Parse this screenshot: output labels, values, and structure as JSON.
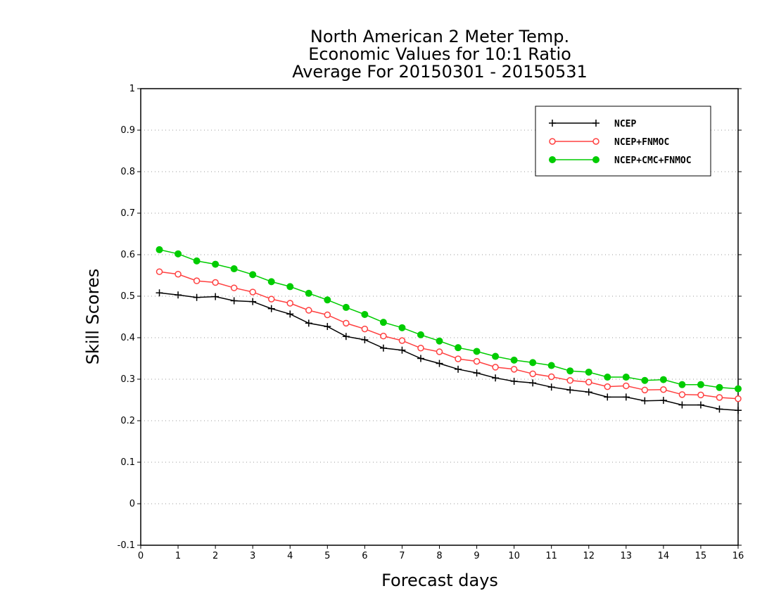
{
  "chart_data": {
    "type": "line",
    "title_lines": [
      "North American 2 Meter Temp.",
      "Economic Values for 10:1 Ratio",
      "Average For 20150301 - 20150531"
    ],
    "xlabel": "Forecast days",
    "ylabel": "Skill Scores",
    "xlim": [
      0,
      16
    ],
    "ylim": [
      -0.1,
      1
    ],
    "x_ticks": [
      0,
      1,
      2,
      3,
      4,
      5,
      6,
      7,
      8,
      9,
      10,
      11,
      12,
      13,
      14,
      15,
      16
    ],
    "y_ticks": [
      -0.1,
      0,
      0.1,
      0.2,
      0.3,
      0.4,
      0.5,
      0.6,
      0.7,
      0.8,
      0.9,
      1
    ],
    "y_tick_labels": [
      "-0.1",
      "0",
      "0.1",
      "0.2",
      "0.3",
      "0.4",
      "0.5",
      "0.6",
      "0.7",
      "0.8",
      "0.9",
      "1"
    ],
    "grid": "horizontal dotted",
    "legend_position": "top-right",
    "x": [
      0.5,
      1,
      1.5,
      2,
      2.5,
      3,
      3.5,
      4,
      4.5,
      5,
      5.5,
      6,
      6.5,
      7,
      7.5,
      8,
      8.5,
      9,
      9.5,
      10,
      10.5,
      11,
      11.5,
      12,
      12.5,
      13,
      13.5,
      14,
      14.5,
      15,
      15.5,
      16
    ],
    "series": [
      {
        "name": "NCEP",
        "color": "#000000",
        "marker": "plus",
        "values": [
          0.508,
          0.503,
          0.497,
          0.499,
          0.489,
          0.487,
          0.47,
          0.457,
          0.435,
          0.427,
          0.403,
          0.395,
          0.375,
          0.37,
          0.35,
          0.338,
          0.324,
          0.315,
          0.303,
          0.295,
          0.291,
          0.281,
          0.274,
          0.269,
          0.257,
          0.257,
          0.248,
          0.249,
          0.238,
          0.238,
          0.228,
          0.225
        ]
      },
      {
        "name": "NCEP+FNMOC",
        "color": "#ff4040",
        "marker": "open-circle",
        "values": [
          0.559,
          0.553,
          0.537,
          0.533,
          0.52,
          0.51,
          0.493,
          0.483,
          0.466,
          0.455,
          0.435,
          0.421,
          0.404,
          0.393,
          0.375,
          0.366,
          0.349,
          0.343,
          0.329,
          0.324,
          0.313,
          0.306,
          0.297,
          0.293,
          0.282,
          0.284,
          0.274,
          0.275,
          0.263,
          0.262,
          0.256,
          0.253
        ]
      },
      {
        "name": "NCEP+CMC+FNMOC",
        "color": "#00cc00",
        "marker": "filled-circle",
        "values": [
          0.612,
          0.602,
          0.585,
          0.577,
          0.566,
          0.552,
          0.535,
          0.523,
          0.507,
          0.491,
          0.473,
          0.456,
          0.437,
          0.424,
          0.407,
          0.392,
          0.376,
          0.367,
          0.355,
          0.346,
          0.34,
          0.333,
          0.32,
          0.317,
          0.305,
          0.305,
          0.297,
          0.299,
          0.287,
          0.287,
          0.28,
          0.277
        ]
      }
    ]
  }
}
